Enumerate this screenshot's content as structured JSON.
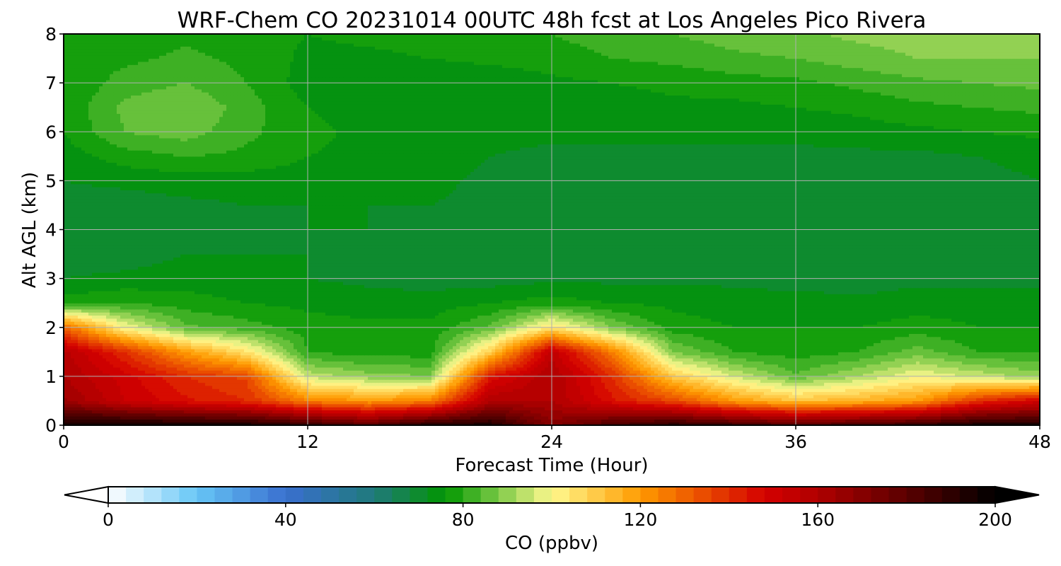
{
  "chart_data": {
    "type": "heatmap",
    "title": "WRF-Chem CO  20231014 00UTC 48h fcst at Los Angeles Pico Rivera",
    "xlabel": "Forecast Time (Hour)",
    "ylabel": "Alt AGL (km)",
    "xlim": [
      0,
      48
    ],
    "ylim": [
      0,
      8
    ],
    "x_ticks": [
      "0",
      "12",
      "24",
      "36",
      "48"
    ],
    "y_ticks": [
      "0",
      "1",
      "2",
      "3",
      "4",
      "5",
      "6",
      "7",
      "8"
    ],
    "grid": true,
    "x": [
      0,
      3,
      6,
      9,
      12,
      15,
      18,
      21,
      24,
      27,
      30,
      33,
      36,
      39,
      42,
      45,
      48
    ],
    "y": [
      0,
      0.5,
      1,
      1.5,
      2,
      2.5,
      3,
      3.5,
      4,
      4.5,
      5,
      5.5,
      6,
      6.5,
      7,
      7.5,
      8
    ],
    "z": [
      [
        198,
        198,
        197,
        196,
        190,
        182,
        194,
        195,
        170,
        185,
        192,
        188,
        182,
        186,
        190,
        196,
        195
      ],
      [
        165,
        152,
        145,
        140,
        125,
        120,
        125,
        160,
        160,
        145,
        135,
        120,
        112,
        115,
        120,
        140,
        150
      ],
      [
        160,
        150,
        140,
        135,
        95,
        90,
        88,
        145,
        160,
        140,
        110,
        96,
        85,
        92,
        100,
        95,
        90
      ],
      [
        158,
        140,
        120,
        105,
        80,
        78,
        78,
        110,
        155,
        125,
        88,
        80,
        78,
        80,
        86,
        80,
        80
      ],
      [
        130,
        100,
        85,
        82,
        78,
        77,
        77,
        85,
        105,
        88,
        78,
        76,
        76,
        76,
        78,
        76,
        76
      ],
      [
        78,
        80,
        78,
        76,
        75,
        74,
        74,
        76,
        78,
        76,
        75,
        74,
        74,
        73,
        74,
        74,
        74
      ],
      [
        72,
        73,
        74,
        73,
        72,
        71,
        70,
        70,
        71,
        71,
        71,
        71,
        70,
        70,
        71,
        71,
        71
      ],
      [
        70,
        70,
        72,
        72,
        72,
        70,
        68,
        68,
        69,
        70,
        70,
        70,
        70,
        69,
        70,
        70,
        70
      ],
      [
        69,
        69,
        70,
        71,
        72,
        72,
        71,
        71,
        72,
        72,
        72,
        72,
        72,
        71,
        70,
        70,
        70
      ],
      [
        70,
        70,
        71,
        72,
        72,
        72,
        72,
        71,
        70,
        70,
        71,
        71,
        71,
        70,
        69,
        70,
        70
      ],
      [
        72,
        73,
        74,
        74,
        74,
        74,
        73,
        71,
        70,
        70,
        70,
        70,
        70,
        70,
        70,
        71,
        72
      ],
      [
        74,
        78,
        80,
        79,
        76,
        75,
        74,
        72,
        71,
        71,
        71,
        71,
        71,
        71,
        71,
        72,
        73
      ],
      [
        76,
        84,
        86,
        81,
        77,
        75,
        74,
        73,
        73,
        73,
        73,
        73,
        73,
        74,
        75,
        76,
        77
      ],
      [
        77,
        85,
        88,
        82,
        76,
        74,
        73,
        73,
        74,
        74,
        75,
        75,
        76,
        77,
        79,
        80,
        81
      ],
      [
        76,
        82,
        84,
        80,
        74,
        72,
        72,
        73,
        75,
        76,
        77,
        78,
        79,
        81,
        83,
        84,
        85
      ],
      [
        77,
        79,
        81,
        79,
        75,
        75,
        76,
        77,
        78,
        80,
        81,
        83,
        84,
        86,
        88,
        88,
        88
      ],
      [
        77,
        78,
        79,
        78,
        76,
        77,
        78,
        79,
        80,
        82,
        84,
        86,
        87,
        89,
        90,
        90,
        90
      ]
    ],
    "colorbar": {
      "label": "CO  (ppbv)",
      "min": 0,
      "max": 200,
      "extend": "both",
      "tick_values": [
        0,
        40,
        80,
        120,
        160,
        200
      ],
      "tick_labels": [
        "0",
        "40",
        "80",
        "120",
        "160",
        "200"
      ],
      "levels": 50,
      "color_stops": [
        [
          0,
          "#ffffff"
        ],
        [
          20,
          "#66c6f6"
        ],
        [
          40,
          "#3a6fcf"
        ],
        [
          60,
          "#1f7a7a"
        ],
        [
          68,
          "#12873e"
        ],
        [
          76,
          "#009600"
        ],
        [
          88,
          "#7cc947"
        ],
        [
          100,
          "#fff98f"
        ],
        [
          120,
          "#ff9a00"
        ],
        [
          148,
          "#d40000"
        ],
        [
          160,
          "#b00000"
        ],
        [
          180,
          "#5a0000"
        ],
        [
          200,
          "#000000"
        ]
      ]
    }
  }
}
